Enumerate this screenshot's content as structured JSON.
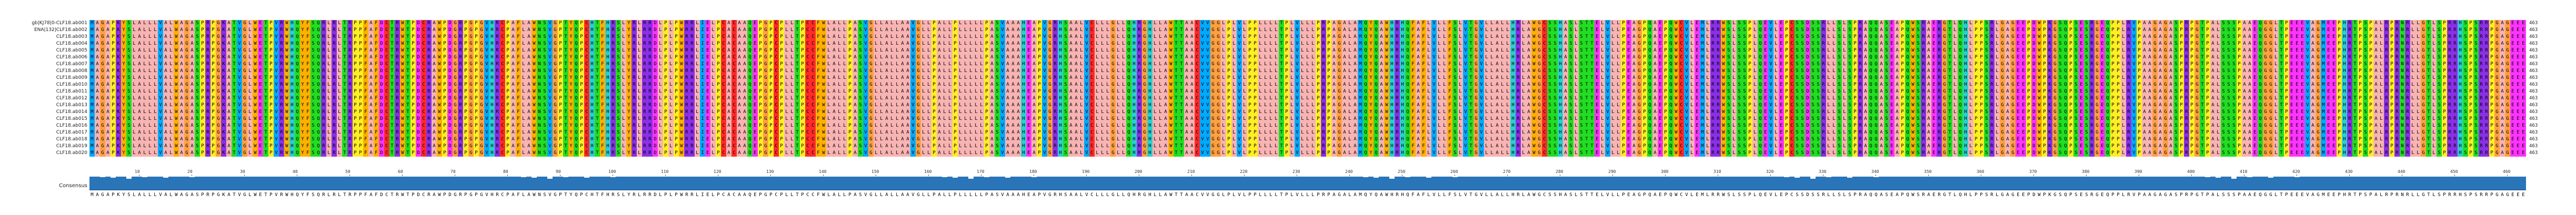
{
  "app": {
    "consensus_label": "Consensus"
  },
  "alignment": {
    "sequence_names": [
      "gb|KJ78|0-CLF18.ab001",
      "ENA|132|CLF18.ab002",
      "CLF18.ab003",
      "CLF18.ab004",
      "CLF18.ab005",
      "CLF18.ab006",
      "CLF18.ab007",
      "CLF18.ab008",
      "CLF18.ab009",
      "CLF18.ab010",
      "CLF18.ab011",
      "CLF18.ab012",
      "CLF18.ab013",
      "CLF18.ab014",
      "CLF18.ab015",
      "CLF18.ab016",
      "CLF18.ab017",
      "CLF18.ab018",
      "CLF18.ab019",
      "CLF18.ab020"
    ],
    "end_positions": [
      "463",
      "463",
      "463",
      "463",
      "463",
      "463",
      "463",
      "463",
      "463",
      "463",
      "463",
      "463",
      "463",
      "463",
      "463",
      "463",
      "463",
      "463",
      "463",
      "463"
    ],
    "consensus_sequence": "MAGAPKYSLALLLVALWAGASPRPGKATVGLWETPVRWHQYFSQRLRLTRPPFAFDCTRWTPDCRAWPDGRPGPGVHRCPAFLAWNSVGPTYQPCHTFHRSLYRLRRDLPLPWRRLIELPCACAAQEPGPCPLLTPCCFWLALLPASVGLLALLAAVGLLPALLPLLLLLPASVAAAHEAPVGRHSAALVCLLLGLLQHRGHLLAWTTAACVVGGLPLVLPPLLLLTPLVLLLPRPAGALAMQYQAWHRHQFAFLVLLFSLVTGVLLALLHRLAWGCSSHASLSTTELVLLPEAGPQAEPQWCVLEMLRRWSLSSPLQEVLEPCSSDSSRLLSLSPRAQQASEAPQWSRAERGTLQHLPPSRLGAGEEPDWPKGSQPSESRGEQPPLRVPAAGAGASPRPGTPALSSSPAAEQGGLTPEEEVAGMEEPHRTPSPALRPRNRLLGTLSPRRHSPSRRPGAGEEEVQPSDLTQPRHPSLGQRQGDTS",
    "conservation": [
      26,
      26,
      25,
      26,
      24,
      26,
      26,
      22,
      26,
      26,
      25,
      26,
      26,
      26,
      24,
      26,
      26,
      26,
      26,
      25,
      26,
      26,
      26,
      26,
      26,
      26,
      26,
      26,
      26,
      26,
      26,
      26,
      26,
      26,
      26,
      26,
      26,
      26,
      26,
      26,
      26,
      26,
      26,
      26,
      26,
      26,
      26,
      26,
      26,
      26,
      26,
      26,
      26,
      26,
      26,
      26,
      26,
      26,
      26,
      26,
      26,
      26,
      26,
      26,
      26,
      26,
      26,
      26,
      26,
      26,
      26,
      26,
      26,
      26,
      26,
      26,
      26,
      26,
      26,
      26
    ],
    "ruler_ticks": [
      "10",
      "20",
      "30",
      "40",
      "50",
      "60",
      "70",
      "80",
      "90",
      "100",
      "110",
      "120",
      "130",
      "140",
      "150",
      "160",
      "170",
      "180",
      "190",
      "200",
      "210",
      "220",
      "230",
      "240",
      "250",
      "260",
      "270",
      "280",
      "290",
      "300",
      "310",
      "320",
      "330",
      "340",
      "350",
      "360",
      "370",
      "380",
      "390",
      "400",
      "410",
      "420",
      "430",
      "440",
      "450",
      "460"
    ]
  },
  "colors": {
    "hydrophobic_A": "#f8b3b3",
    "hydrophobic_L": "#f8b3b3",
    "aromatic_FWY": "#ffb000",
    "positive_KR": "#8b2fe8",
    "negative_DE": "#ff33ff",
    "polar_STNQ": "#22dd22",
    "special_G": "#ffa040",
    "special_P": "#ffee22",
    "cysteine_C": "#ff2a2a",
    "histidine_H": "#2ad0d0",
    "other_MIV": "#00aaff",
    "consensus_bar": "#2a74b8"
  }
}
